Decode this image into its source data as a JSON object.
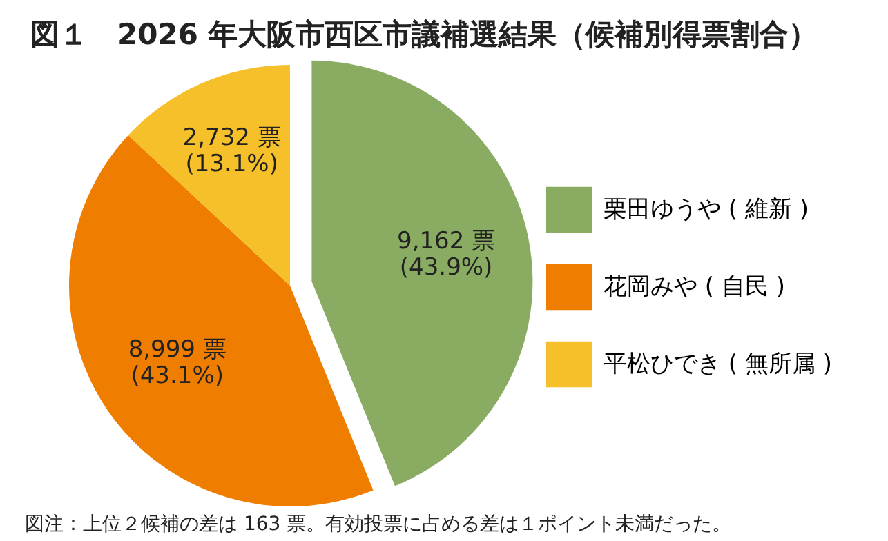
{
  "chart_data": {
    "type": "pie",
    "title": "図１　2026 年大阪市西区市議補選結果（候補別得票割合）",
    "categories": [
      "栗田ゆうや ( 維新 )",
      "花岡みや ( 自民 )",
      "平松ひでき ( 無所属 )"
    ],
    "values": [
      9162,
      8999,
      2732
    ],
    "colors": [
      "#8aac62",
      "#ef7d00",
      "#f6c02a"
    ],
    "value_labels": [
      "9,162 票\n(43.9%)",
      "8,999 票\n(43.1%)",
      "2,732 票\n(13.1%)"
    ],
    "legend": "right",
    "annotations": [
      "図注：上位２候補の差は 163 票。有効投票に占める差は１ポイント未満だった。"
    ]
  }
}
